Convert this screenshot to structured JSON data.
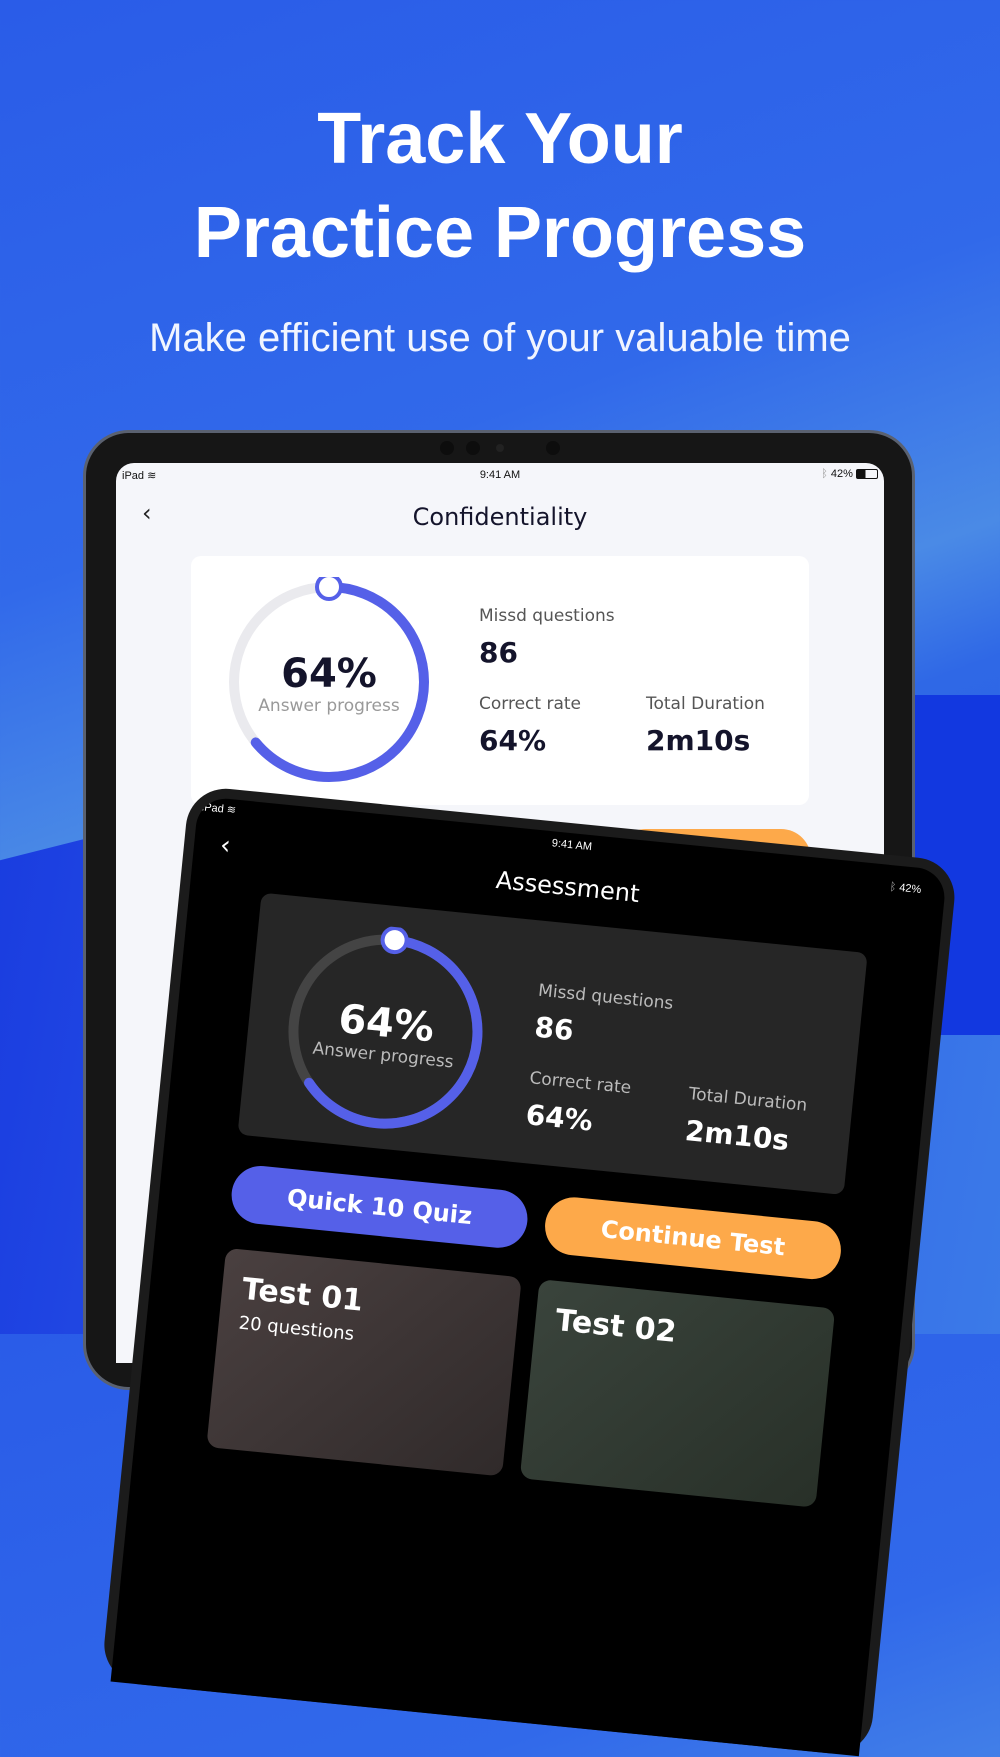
{
  "headline": {
    "line1": "Track Your",
    "line2": "Practice Progress",
    "subtitle": "Make efficient use of your valuable time"
  },
  "back_device": {
    "status": {
      "device": "iPad",
      "time": "9:41 AM",
      "battery": "42%"
    },
    "title": "Confidentiality",
    "stats": {
      "percent": "64%",
      "percent_label": "Answer progress",
      "progress": 0.64,
      "missed_label": "Missd questions",
      "missed": "86",
      "correct_label": "Correct rate",
      "correct": "64%",
      "duration_label": "Total Duration",
      "duration": "2m10s"
    }
  },
  "front_device": {
    "status": {
      "device": "iPad",
      "time": "9:41 AM",
      "battery": "42%"
    },
    "title": "Assessment",
    "stats": {
      "percent": "64%",
      "percent_label": "Answer progress",
      "progress": 0.64,
      "missed_label": "Missd questions",
      "missed": "86",
      "correct_label": "Correct rate",
      "correct": "64%",
      "duration_label": "Total Duration",
      "duration": "2m10s"
    },
    "buttons": {
      "quick": "Quick 10 Quiz",
      "continue": "Continue Test"
    },
    "tests": [
      {
        "name": "Test 01",
        "questions": "20 questions"
      },
      {
        "name": "Test 02",
        "questions": ""
      }
    ]
  },
  "colors": {
    "accent": "#5560e8",
    "orange": "#fda94a",
    "background": "#2f63e8"
  }
}
